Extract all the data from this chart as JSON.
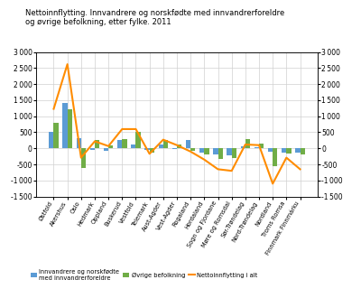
{
  "categories": [
    "Østfold",
    "Akershus",
    "Oslo",
    "Hedmark",
    "Oppland",
    "Buskerud",
    "Vestfold",
    "Telemark",
    "Aust-Agder",
    "Vest-Agder",
    "Rogaland",
    "Hordaland",
    "Sogn og Fjordane",
    "Møre og Romsdal",
    "Sør-Trøndelag",
    "Nord-Trøndelag",
    "Nordland",
    "Troms Romsa",
    "Finnmark Finnmárku"
  ],
  "immigrants": [
    500,
    1400,
    330,
    -50,
    -70,
    270,
    130,
    -50,
    130,
    -30,
    270,
    -120,
    -200,
    -220,
    50,
    30,
    -100,
    -130,
    -130
  ],
  "others": [
    790,
    1220,
    -620,
    270,
    80,
    290,
    500,
    -120,
    260,
    110,
    -80,
    -200,
    -320,
    -300,
    280,
    140,
    -550,
    -160,
    -200
  ],
  "total_line": [
    1230,
    2620,
    -290,
    220,
    70,
    600,
    600,
    -170,
    270,
    100,
    -100,
    -350,
    -650,
    -700,
    120,
    100,
    -1100,
    -290,
    -650
  ],
  "bar_color_immigrants": "#5B9BD5",
  "bar_color_others": "#70AD47",
  "line_color": "#FF8C00",
  "title_line1": "Nettoinnflytting. Innvandrere og norskfødte med innvandrerforeldre",
  "title_line2": "og øvrige befolkning, etter fylke. 2011",
  "ylim": [
    -1500,
    3000
  ],
  "yticks": [
    -1500,
    -1000,
    -500,
    0,
    500,
    1000,
    1500,
    2000,
    2500,
    3000
  ],
  "legend_immigrants": "Innvandrere og norskfødte\nmed innvandrerforeldre",
  "legend_others": "Øvrige befolkning",
  "legend_line": "Nettoinnflytting i alt",
  "background_color": "#ffffff",
  "grid_color": "#d0d0d0"
}
